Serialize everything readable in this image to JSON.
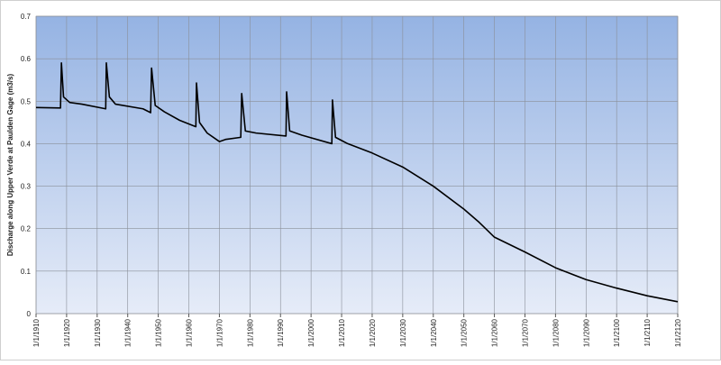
{
  "chart_data": {
    "type": "line",
    "y_label": "Discharge along Upper Verde at Paulden Gage (m3/s)",
    "x": [
      1910,
      1918,
      1918.3,
      1919,
      1921,
      1925,
      1932.8,
      1933,
      1934,
      1936,
      1945,
      1947.5,
      1947.8,
      1949,
      1952,
      1957,
      1962.3,
      1962.5,
      1963.5,
      1966,
      1970,
      1972,
      1977,
      1977.3,
      1978.5,
      1982,
      1991.8,
      1992,
      1993,
      1997,
      2006.8,
      2007,
      2008,
      2012,
      2020,
      2030,
      2040,
      2050,
      2055,
      2060,
      2070,
      2080,
      2090,
      2100,
      2110,
      2120
    ],
    "values": [
      0.485,
      0.484,
      0.59,
      0.51,
      0.497,
      0.493,
      0.482,
      0.59,
      0.51,
      0.493,
      0.482,
      0.473,
      0.578,
      0.49,
      0.475,
      0.455,
      0.44,
      0.543,
      0.45,
      0.425,
      0.405,
      0.41,
      0.415,
      0.518,
      0.43,
      0.425,
      0.418,
      0.522,
      0.43,
      0.42,
      0.4,
      0.503,
      0.415,
      0.4,
      0.378,
      0.345,
      0.3,
      0.246,
      0.215,
      0.18,
      0.145,
      0.108,
      0.08,
      0.06,
      0.042,
      0.028
    ],
    "color": "#000000",
    "xlim": [
      1910,
      2120
    ],
    "xticks": [
      {
        "value": 1910,
        "label": "1/1/1910"
      },
      {
        "value": 1920,
        "label": "1/1/1920"
      },
      {
        "value": 1930,
        "label": "1/1/1930"
      },
      {
        "value": 1940,
        "label": "1/1/1940"
      },
      {
        "value": 1950,
        "label": "1/1/1950"
      },
      {
        "value": 1960,
        "label": "1/1/1960"
      },
      {
        "value": 1970,
        "label": "1/1/1970"
      },
      {
        "value": 1980,
        "label": "1/1/1980"
      },
      {
        "value": 1990,
        "label": "1/1/1990"
      },
      {
        "value": 2000,
        "label": "1/1/2000"
      },
      {
        "value": 2010,
        "label": "1/1/2010"
      },
      {
        "value": 2020,
        "label": "1/1/2020"
      },
      {
        "value": 2030,
        "label": "1/1/2030"
      },
      {
        "value": 2040,
        "label": "1/1/2040"
      },
      {
        "value": 2050,
        "label": "1/1/2050"
      },
      {
        "value": 2060,
        "label": "1/1/2060"
      },
      {
        "value": 2070,
        "label": "1/1/2070"
      },
      {
        "value": 2080,
        "label": "1/1/2080"
      },
      {
        "value": 2090,
        "label": "1/1/2090"
      },
      {
        "value": 2100,
        "label": "1/1/2100"
      },
      {
        "value": 2110,
        "label": "1/1/2110"
      },
      {
        "value": 2120,
        "label": "1/1/2120"
      }
    ],
    "ylim": [
      0,
      0.7
    ],
    "yticks": [
      0,
      0.1,
      0.2,
      0.3,
      0.4,
      0.5,
      0.6,
      0.7
    ],
    "grid": true
  }
}
